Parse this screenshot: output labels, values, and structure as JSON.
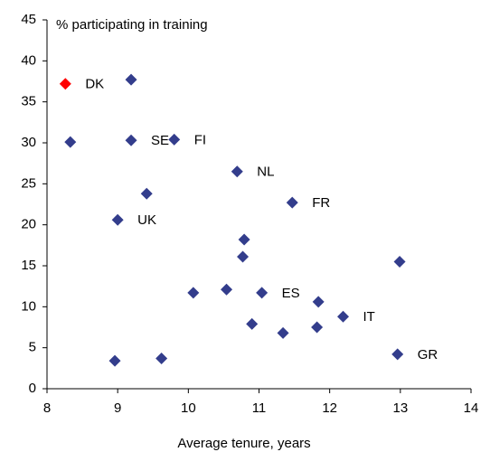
{
  "chart_data": {
    "type": "scatter",
    "y_title": "% participating in training",
    "x_title": "Average tenure, years",
    "x": [
      8.26,
      9.19,
      8.33,
      9.19,
      9.8,
      10.69,
      9.41,
      11.47,
      9.0,
      10.79,
      10.77,
      12.99,
      10.54,
      10.07,
      11.04,
      11.84,
      12.19,
      10.9,
      11.34,
      11.82,
      12.96,
      9.62,
      8.96
    ],
    "values": [
      37.2,
      37.7,
      30.1,
      30.3,
      30.4,
      26.5,
      23.8,
      22.7,
      20.6,
      18.2,
      16.1,
      15.5,
      12.1,
      11.7,
      11.7,
      10.6,
      8.8,
      7.9,
      6.8,
      7.5,
      4.2,
      3.7,
      3.4
    ],
    "point_labels": [
      "DK",
      null,
      null,
      "SE",
      "FI",
      "NL",
      null,
      "FR",
      "UK",
      null,
      null,
      null,
      null,
      null,
      "ES",
      null,
      "IT",
      null,
      null,
      null,
      "GR",
      null,
      null
    ],
    "point_colors": [
      "#ff0000",
      "#333d8c",
      "#333d8c",
      "#333d8c",
      "#333d8c",
      "#333d8c",
      "#333d8c",
      "#333d8c",
      "#333d8c",
      "#333d8c",
      "#333d8c",
      "#333d8c",
      "#333d8c",
      "#333d8c",
      "#333d8c",
      "#333d8c",
      "#333d8c",
      "#333d8c",
      "#333d8c",
      "#333d8c",
      "#333d8c",
      "#333d8c",
      "#333d8c"
    ],
    "xlim": [
      8,
      14
    ],
    "xticks": [
      8,
      9,
      10,
      11,
      12,
      13,
      14
    ],
    "ylim": [
      0,
      45
    ],
    "yticks": [
      0,
      5,
      10,
      15,
      20,
      25,
      30,
      35,
      40,
      45
    ],
    "grid": false
  }
}
